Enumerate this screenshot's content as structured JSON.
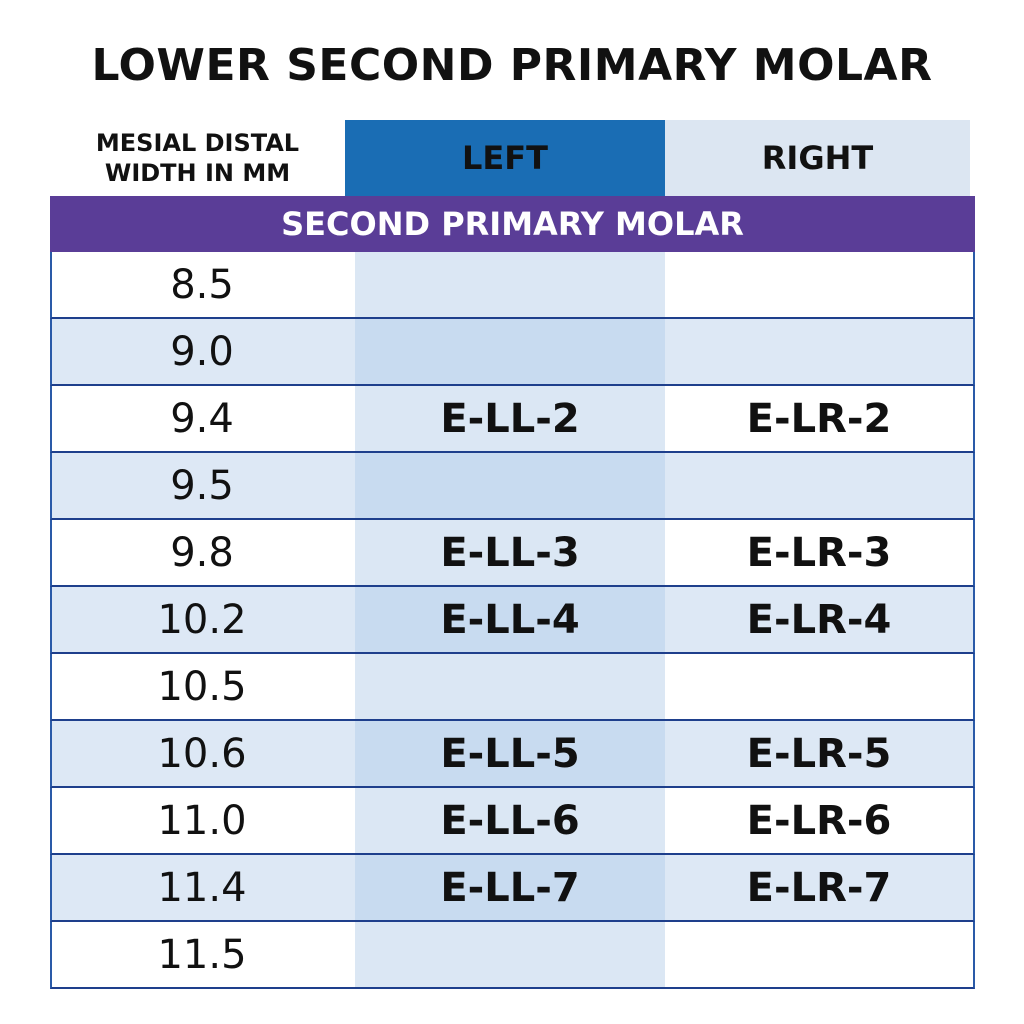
{
  "title": "LOWER SECOND PRIMARY MOLAR",
  "table": {
    "corner_label": "MESIAL DISTAL WIDTH IN MM",
    "columns": [
      "LEFT",
      "RIGHT"
    ],
    "section": "SECOND PRIMARY MOLAR",
    "rows": [
      [
        "8.5",
        null,
        null
      ],
      [
        "9.0",
        null,
        null
      ],
      [
        "9.4",
        "E-LL-2",
        "E-LR-2"
      ],
      [
        "9.5",
        null,
        null
      ],
      [
        "9.8",
        "E-LL-3",
        "E-LR-3"
      ],
      [
        "10.2",
        "E-LL-4",
        "E-LR-4"
      ],
      [
        "10.5",
        null,
        null
      ],
      [
        "10.6",
        "E-LL-5",
        "E-LR-5"
      ],
      [
        "11.0",
        "E-LL-6",
        "E-LR-6"
      ],
      [
        "11.4",
        "E-LL-7",
        "E-LR-7"
      ],
      [
        "11.5",
        null,
        null
      ]
    ]
  }
}
